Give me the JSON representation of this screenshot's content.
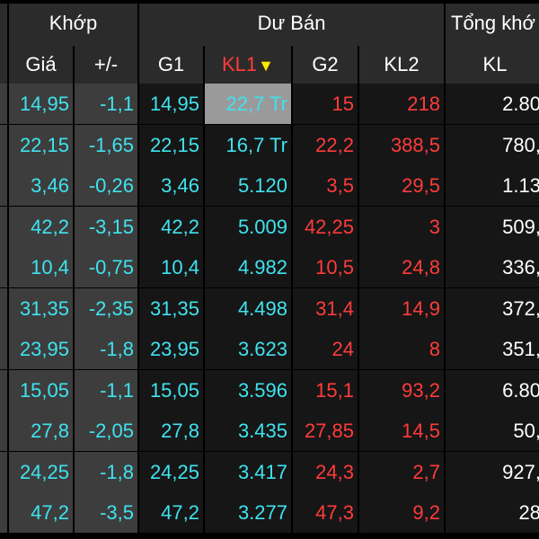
{
  "header": {
    "group_khop": "Khớp",
    "group_du_ban": "Dư Bán",
    "group_tong_khop": "Tổng khớ",
    "col_gia": "Giá",
    "col_change": "+/-",
    "col_g1": "G1",
    "col_kl1": "KL1",
    "col_g2": "G2",
    "col_kl2": "KL2",
    "col_kl": "KL",
    "sort_indicator_icon": "triangle-down-icon",
    "sort_color": "#ffe600"
  },
  "colors": {
    "cyan": "#3fe3ef",
    "red": "#ff3b3b",
    "white": "#ffffff",
    "highlight": "#9a9a9a"
  },
  "rows": [
    {
      "gia": "14,95",
      "change": "-1,1",
      "g1": "14,95",
      "kl1": "22,7 Tr",
      "g2": "15",
      "kl2": "218",
      "kl": "2.80"
    },
    {
      "gia": "22,15",
      "change": "-1,65",
      "g1": "22,15",
      "kl1": "16,7 Tr",
      "g2": "22,2",
      "kl2": "388,5",
      "kl": "780,"
    },
    {
      "gia": "3,46",
      "change": "-0,26",
      "g1": "3,46",
      "kl1": "5.120",
      "g2": "3,5",
      "kl2": "29,5",
      "kl": "1.13"
    },
    {
      "gia": "42,2",
      "change": "-3,15",
      "g1": "42,2",
      "kl1": "5.009",
      "g2": "42,25",
      "kl2": "3",
      "kl": "509,"
    },
    {
      "gia": "10,4",
      "change": "-0,75",
      "g1": "10,4",
      "kl1": "4.982",
      "g2": "10,5",
      "kl2": "24,8",
      "kl": "336,"
    },
    {
      "gia": "31,35",
      "change": "-2,35",
      "g1": "31,35",
      "kl1": "4.498",
      "g2": "31,4",
      "kl2": "14,9",
      "kl": "372,"
    },
    {
      "gia": "23,95",
      "change": "-1,8",
      "g1": "23,95",
      "kl1": "3.623",
      "g2": "24",
      "kl2": "8",
      "kl": "351,"
    },
    {
      "gia": "15,05",
      "change": "-1,1",
      "g1": "15,05",
      "kl1": "3.596",
      "g2": "15,1",
      "kl2": "93,2",
      "kl": "6.80"
    },
    {
      "gia": "27,8",
      "change": "-2,05",
      "g1": "27,8",
      "kl1": "3.435",
      "g2": "27,85",
      "kl2": "14,5",
      "kl": "50,"
    },
    {
      "gia": "24,25",
      "change": "-1,8",
      "g1": "24,25",
      "kl1": "3.417",
      "g2": "24,3",
      "kl2": "2,7",
      "kl": "927,"
    },
    {
      "gia": "47,2",
      "change": "-3,5",
      "g1": "47,2",
      "kl1": "3.277",
      "g2": "47,3",
      "kl2": "9,2",
      "kl": "28"
    }
  ]
}
